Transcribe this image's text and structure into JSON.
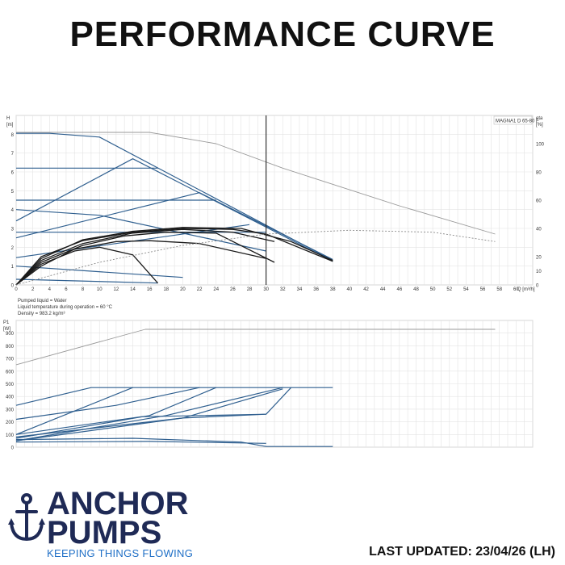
{
  "page": {
    "title": "PERFORMANCE CURVE",
    "last_updated": "LAST UPDATED: 23/04/26 (LH)"
  },
  "brand": {
    "line1": "ANCHOR",
    "line2": "PUMPS",
    "tagline": "KEEPING THINGS FLOWING",
    "logo_icon": "anchor-icon",
    "primary_color": "#1f2a56",
    "accent_color": "#1f6fc6"
  },
  "chart_data": [
    {
      "type": "line",
      "id": "head",
      "model_label": "MAGNA1 D 65-80 F",
      "ylabel_left_symbol": "H",
      "ylabel_left_unit": "[m]",
      "ylabel_right_symbol": "eta",
      "ylabel_right_unit": "[%]",
      "xlabel": "Q [m³/h]",
      "xlim": [
        0,
        62
      ],
      "ylim": [
        0,
        9
      ],
      "ylim_right": [
        0,
        120
      ],
      "xticks": [
        0,
        2,
        4,
        6,
        8,
        10,
        12,
        14,
        16,
        18,
        20,
        22,
        24,
        26,
        28,
        30,
        32,
        34,
        36,
        38,
        40,
        42,
        44,
        46,
        48,
        50,
        52,
        54,
        56,
        58,
        60
      ],
      "yticks": [
        0,
        1,
        2,
        3,
        4,
        5,
        6,
        7,
        8
      ],
      "yticks_right": [
        0,
        10,
        20,
        40,
        60,
        80,
        100
      ],
      "notes": [
        "Pumped liquid = Water",
        "Liquid temperature during operation = 60 °C",
        "Density = 983.2 kg/m³"
      ],
      "operating_line_x": 30,
      "series": [
        {
          "style": "blue",
          "points": [
            [
              0,
              8.05
            ],
            [
              4,
              8.05
            ],
            [
              10,
              7.85
            ],
            [
              38,
              1.3
            ]
          ]
        },
        {
          "style": "blue",
          "points": [
            [
              0,
              3.4
            ],
            [
              14,
              6.7
            ],
            [
              38,
              1.25
            ]
          ]
        },
        {
          "style": "blue",
          "points": [
            [
              0,
              6.2
            ],
            [
              17,
              6.2
            ]
          ]
        },
        {
          "style": "blue",
          "points": [
            [
              0,
              2.5
            ],
            [
              22,
              4.9
            ],
            [
              38,
              1.35
            ]
          ]
        },
        {
          "style": "blue",
          "points": [
            [
              0,
              4.5
            ],
            [
              24,
              4.5
            ]
          ]
        },
        {
          "style": "blue",
          "points": [
            [
              0,
              4.0
            ],
            [
              10,
              3.7
            ],
            [
              30,
              1.8
            ]
          ]
        },
        {
          "style": "blue",
          "points": [
            [
              0,
              2.8
            ],
            [
              30,
              2.8
            ]
          ]
        },
        {
          "style": "blue",
          "points": [
            [
              0,
              1.45
            ],
            [
              28,
              3.2
            ]
          ]
        },
        {
          "style": "blue",
          "points": [
            [
              0,
              1.0
            ],
            [
              20,
              0.4
            ]
          ]
        },
        {
          "style": "blue",
          "points": [
            [
              0,
              0.3
            ],
            [
              17,
              0.1
            ]
          ]
        },
        {
          "style": "black",
          "points": [
            [
              0,
              0
            ],
            [
              3,
              1.5
            ],
            [
              8,
              2.35
            ],
            [
              14,
              2.8
            ],
            [
              20,
              3.0
            ],
            [
              26,
              2.95
            ],
            [
              30,
              2.7
            ],
            [
              38,
              1.25
            ]
          ]
        },
        {
          "style": "black",
          "points": [
            [
              0,
              0
            ],
            [
              3,
              1.3
            ],
            [
              8,
              2.2
            ],
            [
              14,
              2.75
            ],
            [
              20,
              2.95
            ],
            [
              26,
              2.8
            ],
            [
              31,
              2.3
            ]
          ]
        },
        {
          "style": "black",
          "points": [
            [
              0,
              0
            ],
            [
              3,
              1.2
            ],
            [
              8,
              2.1
            ],
            [
              13,
              2.6
            ],
            [
              18,
              2.8
            ],
            [
              24,
              2.75
            ],
            [
              31,
              1.2
            ]
          ]
        },
        {
          "style": "black",
          "points": [
            [
              0,
              0
            ],
            [
              3,
              1.0
            ],
            [
              7,
              1.9
            ],
            [
              12,
              2.3
            ],
            [
              16,
              2.35
            ],
            [
              22,
              2.2
            ],
            [
              30,
              1.4
            ]
          ]
        },
        {
          "style": "black",
          "points": [
            [
              0,
              0
            ],
            [
              3,
              1.1
            ],
            [
              7,
              1.8
            ],
            [
              10,
              2.0
            ],
            [
              14,
              1.6
            ],
            [
              17,
              0.1
            ]
          ]
        },
        {
          "style": "black",
          "points": [
            [
              0,
              0
            ],
            [
              3,
              1.4
            ],
            [
              8,
              2.4
            ],
            [
              14,
              2.85
            ],
            [
              20,
              3.05
            ],
            [
              27,
              3.0
            ],
            [
              33,
              2.3
            ],
            [
              38,
              1.3
            ]
          ]
        },
        {
          "style": "grey-solid",
          "points": [
            [
              0,
              8.1
            ],
            [
              16,
              8.1
            ],
            [
              24,
              7.5
            ],
            [
              32,
              6.2
            ],
            [
              46,
              4.2
            ],
            [
              57.5,
              2.7
            ]
          ]
        },
        {
          "style": "grey-dotted",
          "points": [
            [
              0,
              0
            ],
            [
              10,
              1.2
            ],
            [
              20,
              2.1
            ],
            [
              30,
              2.7
            ],
            [
              40,
              2.9
            ],
            [
              50,
              2.8
            ],
            [
              57.5,
              2.3
            ]
          ]
        }
      ]
    },
    {
      "type": "line",
      "id": "power",
      "ylabel_symbol": "P1",
      "ylabel_unit": "[W]",
      "xlim": [
        0,
        62
      ],
      "ylim": [
        0,
        1000
      ],
      "yticks": [
        0,
        100,
        200,
        300,
        400,
        500,
        600,
        700,
        800,
        900
      ],
      "series": [
        {
          "style": "blue",
          "points": [
            [
              0,
              330
            ],
            [
              9,
              470
            ],
            [
              38,
              470
            ]
          ]
        },
        {
          "style": "blue",
          "points": [
            [
              0,
              100
            ],
            [
              14,
              470
            ]
          ]
        },
        {
          "style": "blue",
          "points": [
            [
              0,
              220
            ],
            [
              12,
              330
            ],
            [
              22,
              470
            ]
          ]
        },
        {
          "style": "blue",
          "points": [
            [
              0,
              70
            ],
            [
              16,
              250
            ],
            [
              24,
              470
            ]
          ]
        },
        {
          "style": "blue",
          "points": [
            [
              0,
              50
            ],
            [
              18,
              250
            ],
            [
              32,
              470
            ]
          ]
        },
        {
          "style": "blue",
          "points": [
            [
              0,
              80
            ],
            [
              20,
              230
            ],
            [
              32,
              460
            ]
          ]
        },
        {
          "style": "blue",
          "points": [
            [
              0,
              50
            ],
            [
              20,
              230
            ],
            [
              30,
              260
            ],
            [
              33,
              470
            ]
          ]
        },
        {
          "style": "blue",
          "points": [
            [
              0,
              100
            ],
            [
              15,
              240
            ],
            [
              30,
              260
            ]
          ]
        },
        {
          "style": "blue",
          "points": [
            [
              0,
              60
            ],
            [
              14,
              70
            ],
            [
              27,
              40
            ],
            [
              30,
              5
            ],
            [
              38,
              5
            ]
          ]
        },
        {
          "style": "blue",
          "points": [
            [
              0,
              40
            ],
            [
              16,
              45
            ],
            [
              30,
              30
            ]
          ]
        },
        {
          "style": "grey-solid",
          "points": [
            [
              0,
              650
            ],
            [
              15.5,
              930
            ],
            [
              57.5,
              930
            ]
          ]
        }
      ]
    }
  ]
}
